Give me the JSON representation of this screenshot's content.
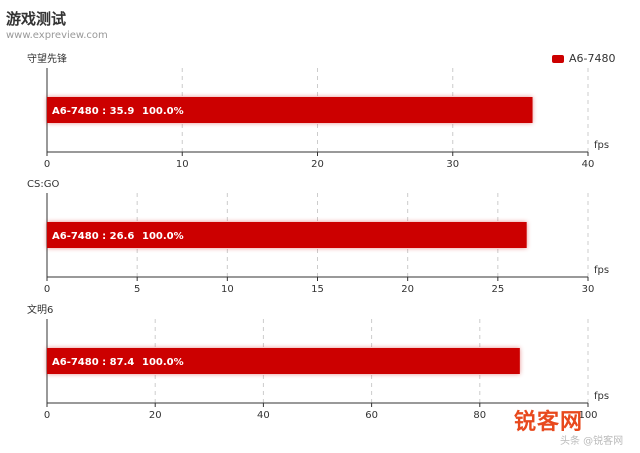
{
  "header": {
    "title": "游戏测试",
    "source": "www.expreview.com"
  },
  "legend": {
    "label": "A6-7480",
    "color": "#cc0000"
  },
  "chart_data": [
    {
      "type": "bar",
      "title": "守望先锋",
      "unit": "fps",
      "xlim": [
        0,
        40
      ],
      "ticks": [
        0,
        10,
        20,
        30,
        40
      ],
      "series": [
        {
          "name": "A6-7480",
          "values": [
            35.9
          ],
          "label": "A6-7480 : 35.9",
          "percent": "100.0%"
        }
      ]
    },
    {
      "type": "bar",
      "title": "CS:GO",
      "unit": "fps",
      "xlim": [
        0,
        30
      ],
      "ticks": [
        0,
        5,
        10,
        15,
        20,
        25,
        30
      ],
      "series": [
        {
          "name": "A6-7480",
          "values": [
            26.6
          ],
          "label": "A6-7480 : 26.6",
          "percent": "100.0%"
        }
      ]
    },
    {
      "type": "bar",
      "title": "文明6",
      "unit": "fps",
      "xlim": [
        0,
        100
      ],
      "ticks": [
        0,
        20,
        40,
        60,
        80,
        100
      ],
      "series": [
        {
          "name": "A6-7480",
          "values": [
            87.4
          ],
          "label": "A6-7480 : 87.4",
          "percent": "100.0%"
        }
      ]
    }
  ],
  "watermark": {
    "text": "锐客网",
    "sub": "头条 @锐客网"
  }
}
